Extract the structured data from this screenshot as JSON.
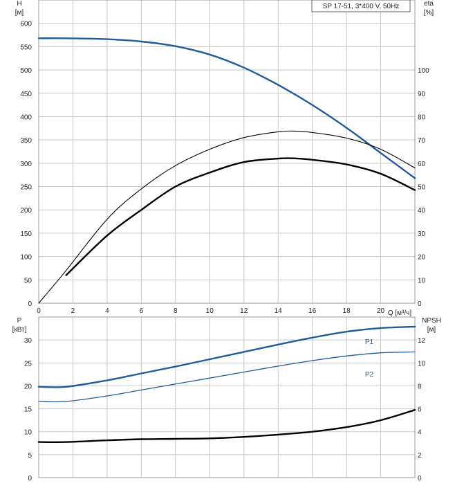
{
  "model_label": "SP 17-51, 3*400 V, 50Hz",
  "top_chart": {
    "left_axis": {
      "label": "H",
      "unit": "[м]",
      "ticks": [
        "0",
        "50",
        "100",
        "150",
        "200",
        "250",
        "300",
        "350",
        "400",
        "450",
        "500",
        "550",
        "600"
      ],
      "range": [
        0,
        650
      ]
    },
    "right_axis": {
      "label": "eta",
      "unit": "[%]",
      "ticks": [
        "0",
        "10",
        "20",
        "30",
        "40",
        "50",
        "60",
        "70",
        "80",
        "90",
        "100"
      ],
      "range": [
        0,
        130
      ]
    },
    "x_axis": {
      "label": "Q [м³/ч]",
      "ticks": [
        "0",
        "2",
        "4",
        "6",
        "8",
        "10",
        "12",
        "14",
        "16",
        "18",
        "20"
      ],
      "range": [
        0,
        22
      ]
    }
  },
  "bottom_chart": {
    "left_axis": {
      "label": "P",
      "unit": "[кВт]",
      "ticks": [
        "0",
        "5",
        "10",
        "15",
        "20",
        "25",
        "30"
      ],
      "range": [
        0,
        35
      ]
    },
    "right_axis": {
      "label": "NPSH",
      "unit": "[м]",
      "ticks": [
        "0",
        "2",
        "4",
        "6",
        "8",
        "10",
        "12"
      ],
      "range": [
        0,
        14
      ]
    },
    "series_labels": {
      "p1": "P1",
      "p2": "P2"
    }
  },
  "colors": {
    "blue": "#1f5c99",
    "black": "#000000",
    "grid": "#c8c8c8"
  },
  "chart_data": [
    {
      "type": "line",
      "x_range": [
        0,
        22
      ],
      "ylim": [
        0,
        650
      ],
      "series": [
        {
          "key": "head",
          "axis": "left",
          "x": [
            0,
            1.6,
            4,
            6,
            8,
            10,
            12,
            14,
            16,
            18,
            20,
            22
          ],
          "y": [
            568,
            568,
            566,
            561,
            551,
            533,
            505,
            468,
            425,
            376,
            322,
            268
          ]
        },
        {
          "key": "efficiency_thin",
          "axis": "right",
          "x": [
            0,
            1.6,
            4,
            6,
            8,
            10,
            12,
            14,
            15,
            16,
            18,
            20,
            22
          ],
          "y": [
            0,
            14,
            36,
            49,
            59,
            66,
            71,
            73.5,
            73.8,
            73.2,
            70.8,
            66,
            58
          ]
        },
        {
          "key": "efficiency_thick",
          "axis": "right",
          "x": [
            1.6,
            4,
            6,
            8,
            10,
            12,
            14,
            15,
            16,
            18,
            20,
            22
          ],
          "y": [
            12,
            29,
            40,
            50,
            56,
            60.5,
            62,
            62.1,
            61.5,
            59.5,
            55.5,
            48.5
          ]
        }
      ]
    },
    {
      "type": "line",
      "x_range": [
        0,
        22
      ],
      "ylim": [
        0,
        35
      ],
      "series": [
        {
          "key": "p1",
          "name": "P1",
          "axis": "left",
          "x": [
            0,
            1.6,
            4,
            6,
            8,
            10,
            12,
            14,
            16,
            18,
            20,
            22
          ],
          "y": [
            19.8,
            19.8,
            21.2,
            22.7,
            24.2,
            25.8,
            27.4,
            29.0,
            30.5,
            31.8,
            32.6,
            32.9
          ]
        },
        {
          "key": "p2",
          "name": "P2",
          "axis": "left",
          "x": [
            0,
            1.6,
            4,
            6,
            8,
            10,
            12,
            14,
            16,
            18,
            20,
            22
          ],
          "y": [
            16.6,
            16.6,
            17.8,
            19.1,
            20.4,
            21.7,
            23.0,
            24.3,
            25.5,
            26.5,
            27.2,
            27.4
          ]
        },
        {
          "key": "npsh",
          "axis": "right",
          "x": [
            0,
            1.6,
            4,
            6,
            8,
            10,
            12,
            14,
            16,
            18,
            20,
            22
          ],
          "y": [
            3.1,
            3.1,
            3.25,
            3.35,
            3.38,
            3.42,
            3.55,
            3.75,
            4.0,
            4.4,
            5.0,
            5.9
          ]
        }
      ]
    }
  ]
}
